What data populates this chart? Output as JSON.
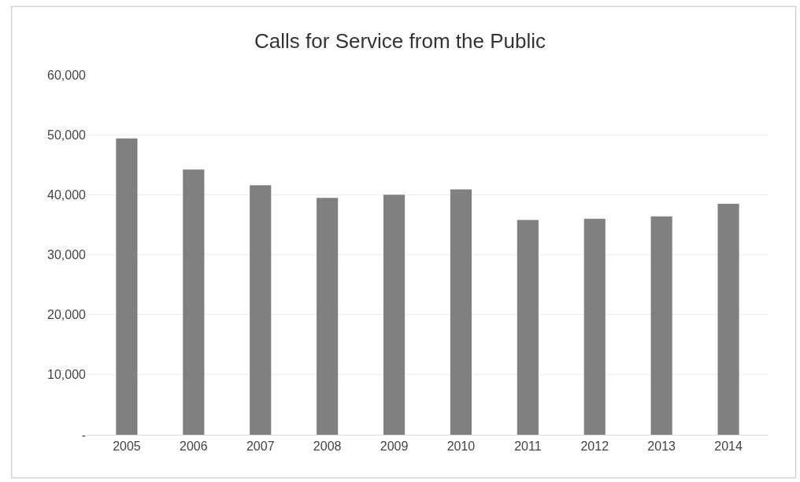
{
  "chart_data": {
    "type": "bar",
    "title": "Calls for Service from the Public",
    "categories": [
      "2005",
      "2006",
      "2007",
      "2008",
      "2009",
      "2010",
      "2011",
      "2012",
      "2013",
      "2014"
    ],
    "values": [
      49400,
      44200,
      41600,
      39500,
      40000,
      40900,
      35800,
      36000,
      36400,
      38500
    ],
    "color": "#808080",
    "ylim": [
      0,
      60000
    ],
    "yticks": [
      {
        "value": 0,
        "label": "-"
      },
      {
        "value": 10000,
        "label": "10,000"
      },
      {
        "value": 20000,
        "label": "20,000"
      },
      {
        "value": 30000,
        "label": "30,000"
      },
      {
        "value": 40000,
        "label": "40,000"
      },
      {
        "value": 50000,
        "label": "50,000"
      },
      {
        "value": 60000,
        "label": "60,000"
      }
    ],
    "grid": "y",
    "legend": false
  }
}
